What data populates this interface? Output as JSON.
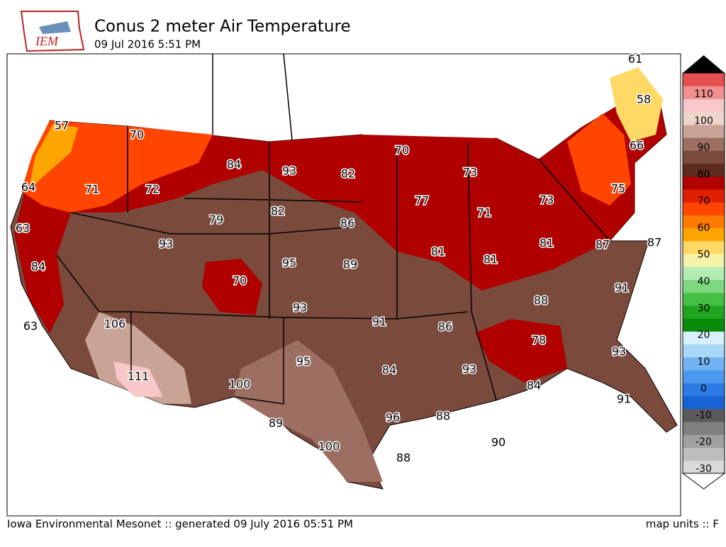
{
  "header": {
    "logo": "IEM",
    "title": "Conus 2 meter Air Temperature",
    "subtitle": "09 Jul 2016 5:51 PM"
  },
  "footer": {
    "left": "Iowa Environmental Mesonet :: generated 09 July 2016 05:51 PM",
    "right": "map units :: F"
  },
  "stations": [
    57,
    70,
    64,
    71,
    72,
    84,
    93,
    82,
    63,
    79,
    82,
    86,
    93,
    95,
    89,
    84,
    70,
    93,
    63,
    106,
    91,
    86,
    95,
    84,
    111,
    100,
    89,
    96,
    88,
    100,
    88,
    90,
    93,
    84,
    91,
    93,
    78,
    88,
    91,
    87,
    87,
    81,
    81,
    81,
    73,
    71,
    77,
    73,
    70,
    75,
    66,
    58,
    61
  ],
  "colorbar": {
    "ticks": [
      110,
      100,
      90,
      80,
      70,
      60,
      50,
      40,
      30,
      20,
      10,
      0,
      -10,
      -20,
      -30
    ],
    "colors": [
      "#d9d9d9",
      "#bdbdbd",
      "#a0a0a0",
      "#808080",
      "#5a5a5a",
      "#1763d6",
      "#2c7be5",
      "#4b98ee",
      "#72b4f3",
      "#a6d6f8",
      "#d8f2fb",
      "#0a8a0a",
      "#1fa51f",
      "#45c045",
      "#7ed87e",
      "#b4ecb4",
      "#f4f4a8",
      "#ffd966",
      "#ffa500",
      "#ff7a00",
      "#ff4500",
      "#e02000",
      "#b00000",
      "#5c2a1e",
      "#7a4a3c",
      "#9c6f62",
      "#c9a396",
      "#eed5cc",
      "#f8c8c8",
      "#f29090",
      "#e65050"
    ]
  }
}
